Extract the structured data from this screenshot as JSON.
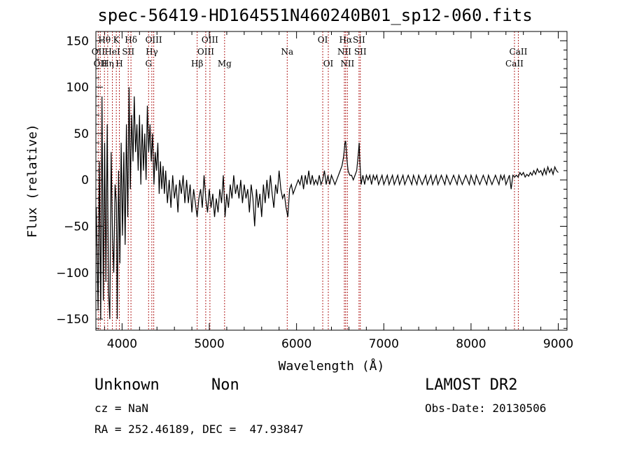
{
  "header": {
    "title": "spec-56419-HD164551N460240B01_sp12-060.fits"
  },
  "footer": {
    "class_label": "Unknown",
    "subclass_label": "Non",
    "survey": "LAMOST DR2",
    "cz": "cz = NaN",
    "obs_date": "Obs-Date: 20130506",
    "radec": "RA = 252.46189, DEC =  47.93847"
  },
  "chart_data": {
    "type": "line",
    "title": "spec-56419-HD164551N460240B01_sp12-060.fits",
    "xlabel": "Wavelength (Å)",
    "ylabel": "Flux (relative)",
    "xlim": [
      3700,
      9100
    ],
    "ylim": [
      -162,
      160
    ],
    "x_ticks": [
      4000,
      5000,
      6000,
      7000,
      8000,
      9000
    ],
    "x_tick_labels": [
      "4000",
      "5000",
      "6000",
      "7000",
      "8000",
      "9000"
    ],
    "y_ticks": [
      -150,
      -100,
      -50,
      0,
      50,
      100,
      150
    ],
    "y_tick_labels": [
      "−150",
      "−100",
      "−50",
      "0",
      "50",
      "100",
      "150"
    ],
    "grid": false,
    "line_color": "#000000",
    "marker_color": "#b22222",
    "spectrum": [
      [
        3705,
        -30
      ],
      [
        3725,
        -140
      ],
      [
        3740,
        20
      ],
      [
        3755,
        -150
      ],
      [
        3770,
        90
      ],
      [
        3785,
        -130
      ],
      [
        3800,
        40
      ],
      [
        3815,
        -110
      ],
      [
        3830,
        60
      ],
      [
        3845,
        -120
      ],
      [
        3860,
        -150
      ],
      [
        3875,
        30
      ],
      [
        3890,
        -60
      ],
      [
        3905,
        -100
      ],
      [
        3920,
        -5
      ],
      [
        3935,
        -25
      ],
      [
        3945,
        -150
      ],
      [
        3960,
        10
      ],
      [
        3975,
        -90
      ],
      [
        3990,
        40
      ],
      [
        4005,
        -60
      ],
      [
        4020,
        30
      ],
      [
        4035,
        -70
      ],
      [
        4050,
        60
      ],
      [
        4065,
        -40
      ],
      [
        4080,
        100
      ],
      [
        4095,
        -10
      ],
      [
        4110,
        70
      ],
      [
        4125,
        20
      ],
      [
        4140,
        90
      ],
      [
        4155,
        30
      ],
      [
        4170,
        60
      ],
      [
        4185,
        10
      ],
      [
        4200,
        70
      ],
      [
        4215,
        -5
      ],
      [
        4230,
        60
      ],
      [
        4245,
        10
      ],
      [
        4260,
        50
      ],
      [
        4275,
        0
      ],
      [
        4290,
        80
      ],
      [
        4305,
        30
      ],
      [
        4320,
        60
      ],
      [
        4335,
        20
      ],
      [
        4350,
        50
      ],
      [
        4365,
        -5
      ],
      [
        4380,
        30
      ],
      [
        4395,
        10
      ],
      [
        4410,
        40
      ],
      [
        4425,
        -15
      ],
      [
        4440,
        20
      ],
      [
        4455,
        -10
      ],
      [
        4470,
        15
      ],
      [
        4485,
        -15
      ],
      [
        4500,
        10
      ],
      [
        4520,
        -25
      ],
      [
        4540,
        0
      ],
      [
        4560,
        -30
      ],
      [
        4580,
        5
      ],
      [
        4600,
        -20
      ],
      [
        4620,
        -5
      ],
      [
        4640,
        -35
      ],
      [
        4660,
        0
      ],
      [
        4680,
        -15
      ],
      [
        4700,
        5
      ],
      [
        4720,
        -25
      ],
      [
        4740,
        0
      ],
      [
        4760,
        -25
      ],
      [
        4780,
        -5
      ],
      [
        4800,
        -35
      ],
      [
        4820,
        -10
      ],
      [
        4840,
        -25
      ],
      [
        4860,
        -40
      ],
      [
        4880,
        -20
      ],
      [
        4900,
        -10
      ],
      [
        4920,
        -30
      ],
      [
        4940,
        5
      ],
      [
        4960,
        -20
      ],
      [
        4980,
        -35
      ],
      [
        5000,
        -10
      ],
      [
        5020,
        -30
      ],
      [
        5040,
        -15
      ],
      [
        5060,
        -40
      ],
      [
        5080,
        -20
      ],
      [
        5100,
        -35
      ],
      [
        5120,
        -10
      ],
      [
        5140,
        -25
      ],
      [
        5160,
        5
      ],
      [
        5180,
        -40
      ],
      [
        5200,
        -15
      ],
      [
        5220,
        -30
      ],
      [
        5240,
        -5
      ],
      [
        5260,
        -20
      ],
      [
        5280,
        5
      ],
      [
        5300,
        -15
      ],
      [
        5320,
        -5
      ],
      [
        5340,
        -20
      ],
      [
        5360,
        0
      ],
      [
        5380,
        -25
      ],
      [
        5400,
        -5
      ],
      [
        5420,
        -20
      ],
      [
        5440,
        -10
      ],
      [
        5460,
        -35
      ],
      [
        5480,
        -5
      ],
      [
        5500,
        -20
      ],
      [
        5520,
        -50
      ],
      [
        5540,
        -10
      ],
      [
        5560,
        -30
      ],
      [
        5580,
        -15
      ],
      [
        5600,
        -40
      ],
      [
        5620,
        -5
      ],
      [
        5640,
        -25
      ],
      [
        5660,
        0
      ],
      [
        5680,
        -20
      ],
      [
        5700,
        5
      ],
      [
        5720,
        -15
      ],
      [
        5740,
        -30
      ],
      [
        5760,
        -5
      ],
      [
        5780,
        -15
      ],
      [
        5800,
        10
      ],
      [
        5820,
        -10
      ],
      [
        5840,
        -20
      ],
      [
        5860,
        -15
      ],
      [
        5880,
        -30
      ],
      [
        5900,
        -40
      ],
      [
        5920,
        -10
      ],
      [
        5940,
        -5
      ],
      [
        5960,
        -15
      ],
      [
        5980,
        -10
      ],
      [
        6000,
        -5
      ],
      [
        6020,
        0
      ],
      [
        6040,
        -5
      ],
      [
        6060,
        5
      ],
      [
        6080,
        -10
      ],
      [
        6100,
        5
      ],
      [
        6120,
        -5
      ],
      [
        6140,
        10
      ],
      [
        6160,
        -5
      ],
      [
        6180,
        5
      ],
      [
        6200,
        -5
      ],
      [
        6220,
        0
      ],
      [
        6240,
        -5
      ],
      [
        6260,
        5
      ],
      [
        6280,
        -5
      ],
      [
        6300,
        0
      ],
      [
        6320,
        10
      ],
      [
        6340,
        -5
      ],
      [
        6360,
        5
      ],
      [
        6380,
        -5
      ],
      [
        6400,
        5
      ],
      [
        6420,
        0
      ],
      [
        6440,
        -5
      ],
      [
        6460,
        0
      ],
      [
        6480,
        5
      ],
      [
        6500,
        10
      ],
      [
        6520,
        15
      ],
      [
        6540,
        25
      ],
      [
        6555,
        40
      ],
      [
        6563,
        42
      ],
      [
        6575,
        25
      ],
      [
        6590,
        10
      ],
      [
        6610,
        5
      ],
      [
        6630,
        5
      ],
      [
        6650,
        0
      ],
      [
        6670,
        5
      ],
      [
        6690,
        10
      ],
      [
        6710,
        30
      ],
      [
        6718,
        40
      ],
      [
        6725,
        20
      ],
      [
        6731,
        10
      ],
      [
        6740,
        -5
      ],
      [
        6760,
        5
      ],
      [
        6780,
        -5
      ],
      [
        6800,
        5
      ],
      [
        6820,
        0
      ],
      [
        6840,
        5
      ],
      [
        6860,
        -5
      ],
      [
        6880,
        5
      ],
      [
        6900,
        0
      ],
      [
        6920,
        5
      ],
      [
        6940,
        -5
      ],
      [
        6960,
        0
      ],
      [
        6980,
        5
      ],
      [
        7000,
        -5
      ],
      [
        7020,
        0
      ],
      [
        7040,
        5
      ],
      [
        7060,
        -5
      ],
      [
        7080,
        0
      ],
      [
        7100,
        5
      ],
      [
        7120,
        -5
      ],
      [
        7140,
        0
      ],
      [
        7160,
        5
      ],
      [
        7180,
        -5
      ],
      [
        7200,
        0
      ],
      [
        7220,
        5
      ],
      [
        7240,
        -5
      ],
      [
        7260,
        0
      ],
      [
        7280,
        5
      ],
      [
        7300,
        0
      ],
      [
        7320,
        -5
      ],
      [
        7340,
        5
      ],
      [
        7360,
        0
      ],
      [
        7380,
        -5
      ],
      [
        7400,
        5
      ],
      [
        7420,
        0
      ],
      [
        7440,
        -5
      ],
      [
        7460,
        0
      ],
      [
        7480,
        5
      ],
      [
        7500,
        -5
      ],
      [
        7520,
        0
      ],
      [
        7540,
        5
      ],
      [
        7560,
        -5
      ],
      [
        7580,
        0
      ],
      [
        7600,
        5
      ],
      [
        7620,
        -5
      ],
      [
        7640,
        0
      ],
      [
        7660,
        5
      ],
      [
        7680,
        0
      ],
      [
        7700,
        -5
      ],
      [
        7720,
        5
      ],
      [
        7740,
        0
      ],
      [
        7760,
        -5
      ],
      [
        7780,
        0
      ],
      [
        7800,
        5
      ],
      [
        7820,
        0
      ],
      [
        7840,
        -5
      ],
      [
        7860,
        5
      ],
      [
        7880,
        0
      ],
      [
        7900,
        -5
      ],
      [
        7920,
        0
      ],
      [
        7940,
        5
      ],
      [
        7960,
        0
      ],
      [
        7980,
        -5
      ],
      [
        8000,
        5
      ],
      [
        8020,
        0
      ],
      [
        8040,
        -5
      ],
      [
        8060,
        5
      ],
      [
        8080,
        0
      ],
      [
        8100,
        -5
      ],
      [
        8120,
        0
      ],
      [
        8140,
        5
      ],
      [
        8160,
        0
      ],
      [
        8180,
        -5
      ],
      [
        8200,
        5
      ],
      [
        8220,
        0
      ],
      [
        8240,
        -5
      ],
      [
        8260,
        0
      ],
      [
        8280,
        5
      ],
      [
        8300,
        0
      ],
      [
        8320,
        -5
      ],
      [
        8340,
        5
      ],
      [
        8360,
        0
      ],
      [
        8380,
        5
      ],
      [
        8400,
        -5
      ],
      [
        8420,
        0
      ],
      [
        8440,
        5
      ],
      [
        8460,
        -10
      ],
      [
        8480,
        5
      ],
      [
        8500,
        3
      ],
      [
        8520,
        5
      ],
      [
        8540,
        3
      ],
      [
        8560,
        8
      ],
      [
        8580,
        5
      ],
      [
        8600,
        8
      ],
      [
        8620,
        3
      ],
      [
        8640,
        6
      ],
      [
        8660,
        4
      ],
      [
        8680,
        8
      ],
      [
        8700,
        5
      ],
      [
        8720,
        10
      ],
      [
        8740,
        6
      ],
      [
        8760,
        12
      ],
      [
        8780,
        8
      ],
      [
        8800,
        10
      ],
      [
        8820,
        5
      ],
      [
        8840,
        12
      ],
      [
        8860,
        6
      ],
      [
        8880,
        14
      ],
      [
        8900,
        8
      ],
      [
        8920,
        12
      ],
      [
        8940,
        6
      ],
      [
        8960,
        14
      ],
      [
        8980,
        10
      ],
      [
        9000,
        8
      ]
    ],
    "lines": [
      {
        "x": 3727,
        "label": "OII",
        "row": 1
      },
      {
        "x": 3750,
        "label": "OII",
        "row": 2
      },
      {
        "x": 3798,
        "label": "Hθ",
        "row": 0
      },
      {
        "x": 3835,
        "label": "Hη",
        "row": 2
      },
      {
        "x": 3889,
        "label": "HeI",
        "row": 1
      },
      {
        "x": 3934,
        "label": "K",
        "row": 0
      },
      {
        "x": 3969,
        "label": "H",
        "row": 2
      },
      {
        "x": 4071,
        "label": "SII",
        "row": 1
      },
      {
        "x": 4102,
        "label": "Hδ",
        "row": 0
      },
      {
        "x": 4304,
        "label": "G",
        "row": 2
      },
      {
        "x": 4341,
        "label": "Hγ",
        "row": 1
      },
      {
        "x": 4363,
        "label": "OIII",
        "row": 0
      },
      {
        "x": 4861,
        "label": "Hβ",
        "row": 2
      },
      {
        "x": 4959,
        "label": "OIII",
        "row": 1
      },
      {
        "x": 5007,
        "label": "OIII",
        "row": 0
      },
      {
        "x": 5175,
        "label": "Mg",
        "row": 2
      },
      {
        "x": 5893,
        "label": "Na",
        "row": 1
      },
      {
        "x": 6300,
        "label": "OI",
        "row": 0
      },
      {
        "x": 6364,
        "label": "OI",
        "row": 2
      },
      {
        "x": 6548,
        "label": "NII",
        "row": 1
      },
      {
        "x": 6563,
        "label": "Hα",
        "row": 0
      },
      {
        "x": 6583,
        "label": "NII",
        "row": 2
      },
      {
        "x": 6716,
        "label": "SII",
        "row": 0
      },
      {
        "x": 6731,
        "label": "SII",
        "row": 1
      },
      {
        "x": 8498,
        "label": "CaII",
        "row": 2
      },
      {
        "x": 8542,
        "label": "CaII",
        "row": 1
      }
    ]
  }
}
